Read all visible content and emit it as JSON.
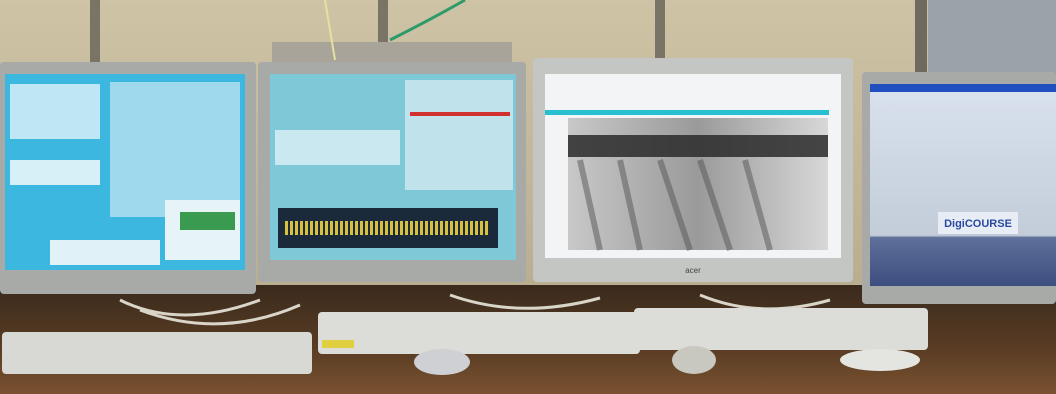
{
  "monitor_4": {
    "banner": "DigiCOURSE"
  }
}
